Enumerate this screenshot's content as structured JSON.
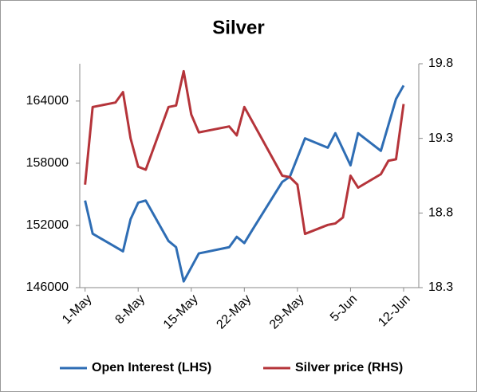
{
  "chart_data": {
    "type": "line",
    "title": "Silver",
    "xlim": [
      -0.7,
      44
    ],
    "xticks": [
      {
        "value": 0,
        "label": "1-May"
      },
      {
        "value": 7,
        "label": "8-May"
      },
      {
        "value": 14,
        "label": "15-May"
      },
      {
        "value": 21,
        "label": "22-May"
      },
      {
        "value": 28,
        "label": "29-May"
      },
      {
        "value": 35,
        "label": "5-Jun"
      },
      {
        "value": 42,
        "label": "12-Jun"
      }
    ],
    "ylim": [
      146000,
      167600
    ],
    "yticks": [
      146000,
      152000,
      158000,
      164000
    ],
    "y2lim": [
      18.3,
      19.8
    ],
    "y2ticks": [
      18.3,
      18.8,
      19.3,
      19.8
    ],
    "grid": false,
    "legend": "bottom",
    "series": [
      {
        "name": "Open Interest (LHS)",
        "color": "#2e6db4",
        "axis": "y",
        "x": [
          0,
          1,
          5,
          6,
          7,
          8,
          11,
          12,
          13,
          15,
          19,
          20,
          21,
          22,
          26,
          27,
          29,
          32,
          33,
          35,
          36,
          39,
          41,
          42
        ],
        "values": [
          154400,
          151200,
          149500,
          152600,
          154200,
          154400,
          150500,
          149900,
          146600,
          149300,
          149900,
          150900,
          150300,
          151500,
          156200,
          156700,
          160400,
          159500,
          160900,
          157800,
          160900,
          159200,
          164200,
          165500
        ]
      },
      {
        "name": "Silver price (RHS)",
        "color": "#b5343a",
        "axis": "y2",
        "x": [
          0,
          1,
          4,
          5,
          6,
          7,
          8,
          11,
          12,
          13,
          14,
          15,
          19,
          20,
          21,
          26,
          27,
          28,
          29,
          32,
          33,
          34,
          35,
          36,
          39,
          40,
          41,
          42
        ],
        "values": [
          18.99,
          19.51,
          19.54,
          19.61,
          19.3,
          19.11,
          19.09,
          19.51,
          19.52,
          19.75,
          19.46,
          19.34,
          19.38,
          19.32,
          19.51,
          19.05,
          19.04,
          18.99,
          18.66,
          18.72,
          18.73,
          18.77,
          19.05,
          18.97,
          19.06,
          19.15,
          19.16,
          19.53
        ]
      }
    ]
  }
}
